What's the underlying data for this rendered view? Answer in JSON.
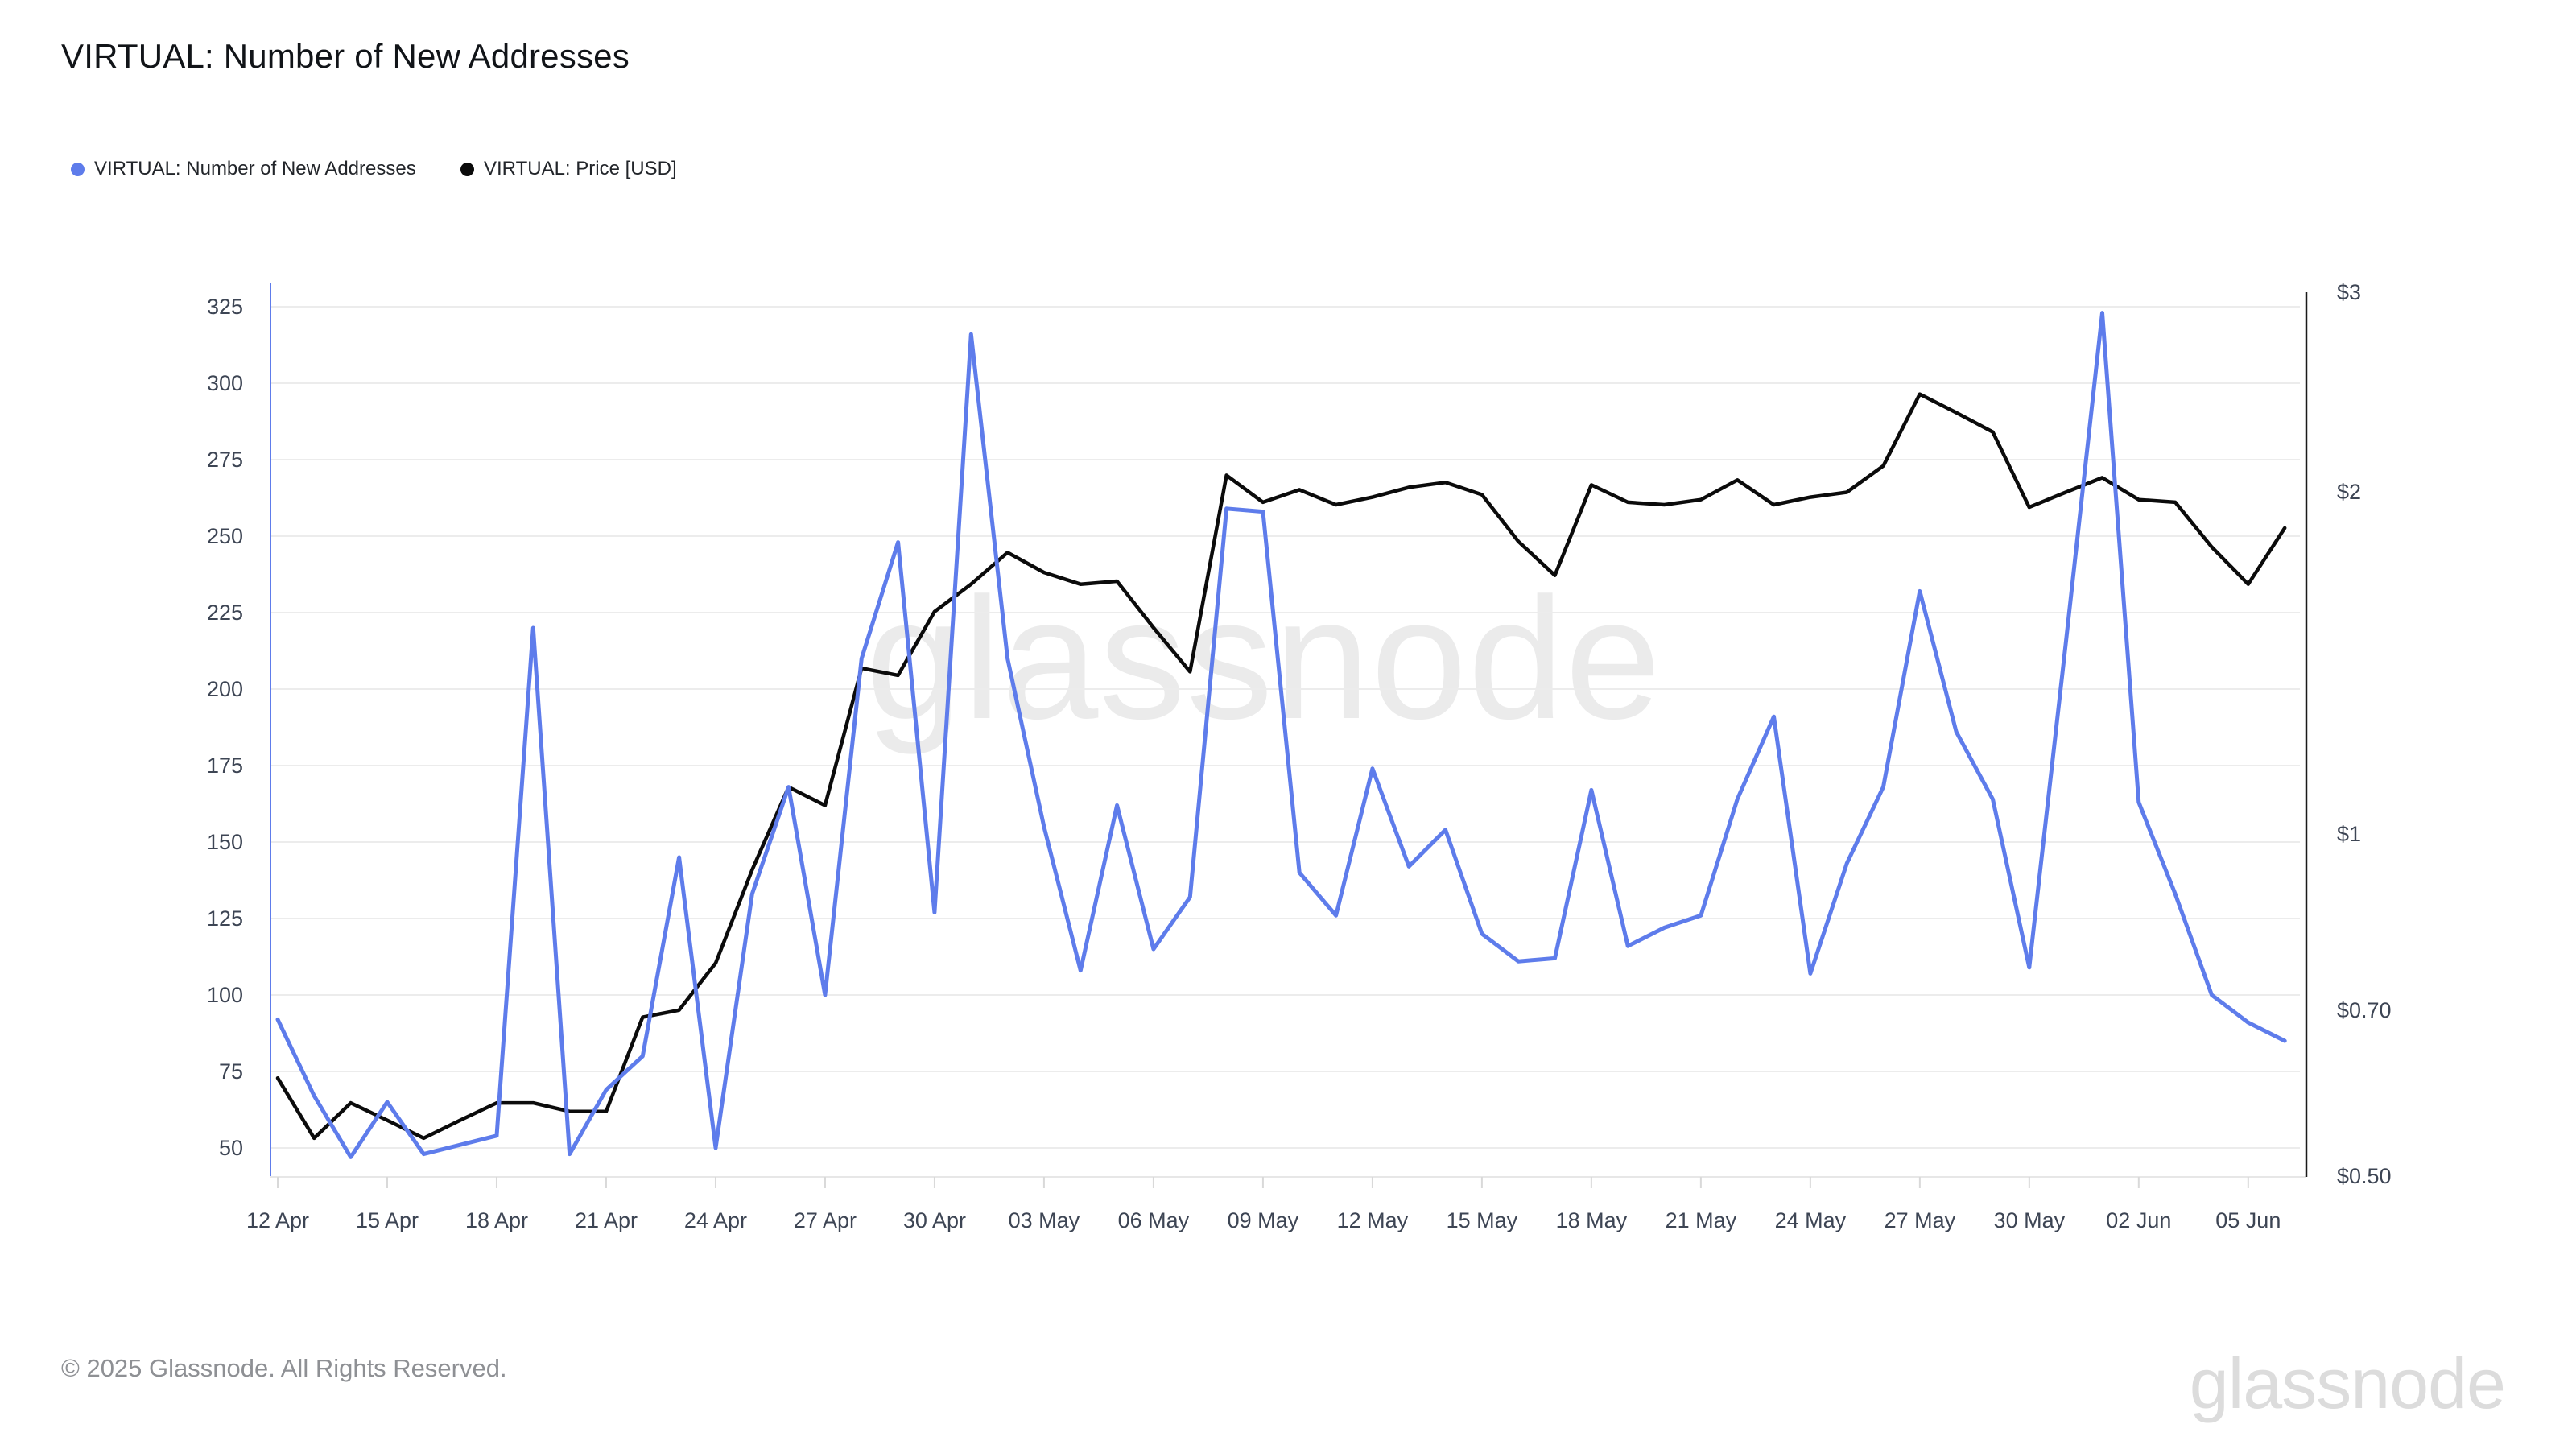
{
  "header": {
    "title": "VIRTUAL: Number of New Addresses"
  },
  "legend": [
    {
      "label": "VIRTUAL: Number of New Addresses",
      "color": "#5E7CEB"
    },
    {
      "label": "VIRTUAL: Price [USD]",
      "color": "#0b0b0b"
    }
  ],
  "watermark": {
    "center": "glassnode",
    "corner": "glassnode"
  },
  "footer": {
    "copyright": "© 2025 Glassnode. All Rights Reserved."
  },
  "chart_data": {
    "type": "line",
    "title": "VIRTUAL: Number of New Addresses",
    "grid": "horizontal",
    "x": [
      "12 Apr",
      "13 Apr",
      "14 Apr",
      "15 Apr",
      "16 Apr",
      "17 Apr",
      "18 Apr",
      "19 Apr",
      "20 Apr",
      "21 Apr",
      "22 Apr",
      "23 Apr",
      "24 Apr",
      "25 Apr",
      "26 Apr",
      "27 Apr",
      "28 Apr",
      "29 Apr",
      "30 Apr",
      "01 May",
      "02 May",
      "03 May",
      "04 May",
      "05 May",
      "06 May",
      "07 May",
      "08 May",
      "09 May",
      "10 May",
      "11 May",
      "12 May",
      "13 May",
      "14 May",
      "15 May",
      "16 May",
      "17 May",
      "18 May",
      "19 May",
      "20 May",
      "21 May",
      "22 May",
      "23 May",
      "24 May",
      "25 May",
      "26 May",
      "27 May",
      "28 May",
      "29 May",
      "30 May",
      "31 May",
      "01 Jun",
      "02 Jun",
      "03 Jun",
      "04 Jun",
      "05 Jun",
      "06 Jun"
    ],
    "x_ticks": [
      "12 Apr",
      "15 Apr",
      "18 Apr",
      "21 Apr",
      "24 Apr",
      "27 Apr",
      "30 Apr",
      "03 May",
      "06 May",
      "09 May",
      "12 May",
      "15 May",
      "18 May",
      "21 May",
      "24 May",
      "27 May",
      "30 May",
      "02 Jun",
      "05 Jun"
    ],
    "left_axis": {
      "label": "Number of New Addresses",
      "scale": "linear",
      "ticks": [
        325,
        300,
        275,
        250,
        225,
        200,
        175,
        150,
        125,
        100,
        75,
        50
      ]
    },
    "right_axis": {
      "label": "Price [USD]",
      "scale": "log",
      "ticks": [
        "$3",
        "$2",
        "$1",
        "$0.70",
        "$0.50"
      ],
      "tick_values": [
        3,
        2,
        1,
        0.7,
        0.5
      ]
    },
    "series": [
      {
        "name": "VIRTUAL: Number of New Addresses",
        "axis": "left",
        "color": "#5E7CEB",
        "values": [
          92,
          67,
          47,
          65,
          48,
          51,
          54,
          220,
          48,
          69,
          80,
          145,
          50,
          133,
          168,
          100,
          210,
          248,
          127,
          316,
          210,
          155,
          108,
          162,
          115,
          132,
          259,
          258,
          140,
          126,
          174,
          142,
          154,
          120,
          111,
          112,
          167,
          116,
          122,
          126,
          164,
          191,
          107,
          143,
          168,
          232,
          186,
          164,
          109,
          215,
          323,
          163,
          133,
          100,
          91,
          85
        ]
      },
      {
        "name": "VIRTUAL: Price [USD]",
        "axis": "right",
        "color": "#0b0b0b",
        "values": [
          0.61,
          0.54,
          0.58,
          0.56,
          0.54,
          0.56,
          0.58,
          0.58,
          0.57,
          0.57,
          0.69,
          0.7,
          0.77,
          0.93,
          1.1,
          1.06,
          1.4,
          1.38,
          1.57,
          1.66,
          1.77,
          1.7,
          1.66,
          1.67,
          1.52,
          1.39,
          2.07,
          1.96,
          2.01,
          1.95,
          1.98,
          2.02,
          2.04,
          1.99,
          1.81,
          1.69,
          2.03,
          1.96,
          1.95,
          1.97,
          2.05,
          1.95,
          1.98,
          2.0,
          2.11,
          2.44,
          2.35,
          2.26,
          1.94,
          2.0,
          2.06,
          1.97,
          1.96,
          1.79,
          1.66,
          1.86
        ]
      }
    ]
  }
}
